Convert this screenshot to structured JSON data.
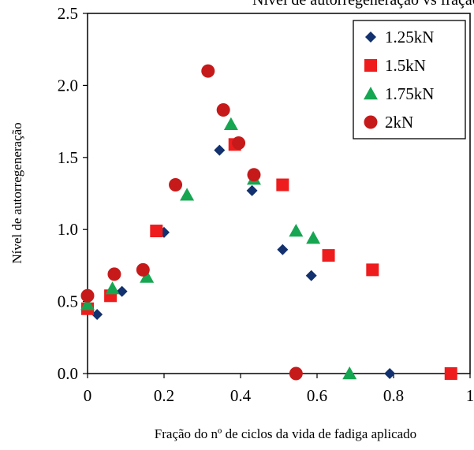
{
  "chart_data": {
    "type": "scatter",
    "title": "Nível de autorregeneração vs fração da vida de fadiga",
    "xlabel": "Fração do nº de ciclos da vida de fadiga aplicado",
    "ylabel": "Nível de autorregeneração",
    "xlim": [
      0,
      1
    ],
    "ylim": [
      0,
      2.5
    ],
    "x_ticks": [
      "0",
      "0.2",
      "0.4",
      "0.6",
      "0.8",
      "1"
    ],
    "y_ticks": [
      "0.0",
      "0.5",
      "1.0",
      "1.5",
      "2.0",
      "2.5"
    ],
    "grid": false,
    "legend_position": "top-right",
    "series": [
      {
        "name": "1.25kN",
        "marker": "diamond",
        "color": "#12316e",
        "points": [
          {
            "x": 0.0,
            "y": 0.47
          },
          {
            "x": 0.025,
            "y": 0.41
          },
          {
            "x": 0.09,
            "y": 0.57
          },
          {
            "x": 0.2,
            "y": 0.98
          },
          {
            "x": 0.345,
            "y": 1.55
          },
          {
            "x": 0.43,
            "y": 1.27
          },
          {
            "x": 0.51,
            "y": 0.86
          },
          {
            "x": 0.585,
            "y": 0.68
          },
          {
            "x": 0.79,
            "y": 0.0
          }
        ]
      },
      {
        "name": "1.5kN",
        "marker": "square",
        "color": "#ee1c1c",
        "points": [
          {
            "x": 0.0,
            "y": 0.45
          },
          {
            "x": 0.06,
            "y": 0.54
          },
          {
            "x": 0.18,
            "y": 0.99
          },
          {
            "x": 0.385,
            "y": 1.59
          },
          {
            "x": 0.51,
            "y": 1.31
          },
          {
            "x": 0.63,
            "y": 0.82
          },
          {
            "x": 0.745,
            "y": 0.72
          },
          {
            "x": 0.95,
            "y": 0.0
          }
        ]
      },
      {
        "name": "1.75kN",
        "marker": "triangle",
        "color": "#16a651",
        "points": [
          {
            "x": 0.0,
            "y": 0.48
          },
          {
            "x": 0.065,
            "y": 0.59
          },
          {
            "x": 0.155,
            "y": 0.67
          },
          {
            "x": 0.26,
            "y": 1.24
          },
          {
            "x": 0.375,
            "y": 1.73
          },
          {
            "x": 0.435,
            "y": 1.35
          },
          {
            "x": 0.545,
            "y": 0.99
          },
          {
            "x": 0.59,
            "y": 0.94
          },
          {
            "x": 0.685,
            "y": 0.0
          }
        ]
      },
      {
        "name": "2kN",
        "marker": "circle",
        "color": "#c61a1a",
        "points": [
          {
            "x": 0.0,
            "y": 0.54
          },
          {
            "x": 0.07,
            "y": 0.69
          },
          {
            "x": 0.145,
            "y": 0.72
          },
          {
            "x": 0.23,
            "y": 1.31
          },
          {
            "x": 0.315,
            "y": 2.1
          },
          {
            "x": 0.355,
            "y": 1.83
          },
          {
            "x": 0.395,
            "y": 1.6
          },
          {
            "x": 0.435,
            "y": 1.38
          },
          {
            "x": 0.545,
            "y": 0.0
          }
        ]
      }
    ]
  }
}
